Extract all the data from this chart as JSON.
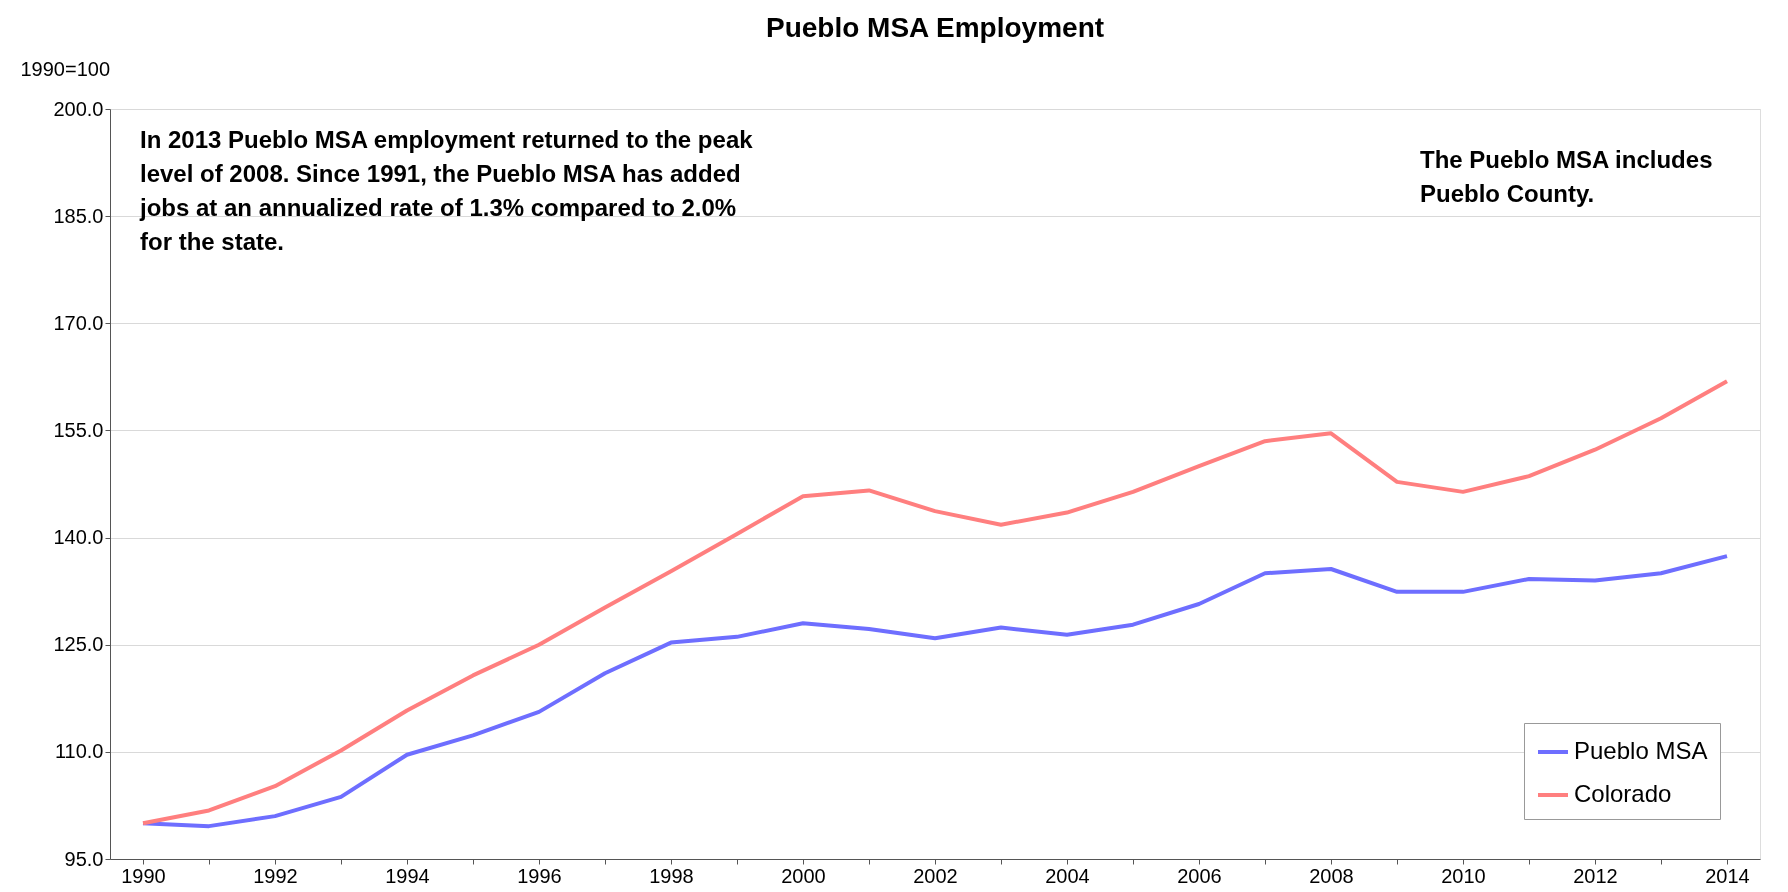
{
  "chart_data": {
    "type": "line",
    "title": "Pueblo MSA Employment",
    "ylabel": "1990=100",
    "categories": [
      "1990",
      null,
      "1992",
      null,
      "1994",
      null,
      "1996",
      null,
      "1998",
      null,
      "2000",
      null,
      "2002",
      null,
      "2004",
      null,
      "2006",
      null,
      "2008",
      null,
      "2010",
      null,
      "2012",
      null,
      "2014"
    ],
    "series": [
      {
        "name": "Pueblo MSA",
        "color": "#6e6eff",
        "values": [
          100.0,
          99.6,
          101.0,
          103.7,
          109.6,
          112.3,
          115.6,
          121.0,
          125.3,
          126.1,
          128.0,
          127.2,
          125.9,
          127.4,
          126.4,
          127.8,
          130.7,
          135.0,
          135.6,
          132.4,
          132.4,
          134.2,
          134.0,
          135.0,
          137.4
        ]
      },
      {
        "name": "Colorado",
        "color": "#ff7f7f",
        "values": [
          100.0,
          101.8,
          105.2,
          110.2,
          115.8,
          120.7,
          125.0,
          130.2,
          135.3,
          140.5,
          145.8,
          146.6,
          143.7,
          141.8,
          143.5,
          146.4,
          150.0,
          153.5,
          154.6,
          147.8,
          146.4,
          148.6,
          152.3,
          156.7,
          161.9
        ]
      }
    ],
    "ylim": [
      95,
      200
    ],
    "yticks": [
      {
        "value": 95,
        "label": "95.0"
      },
      {
        "value": 110,
        "label": "110.0"
      },
      {
        "value": 125,
        "label": "125.0"
      },
      {
        "value": 140,
        "label": "140.0"
      },
      {
        "value": 155,
        "label": "155.0"
      },
      {
        "value": 170,
        "label": "170.0"
      },
      {
        "value": 185,
        "label": "185.0"
      },
      {
        "value": 200,
        "label": "200.0"
      }
    ],
    "grid": "y",
    "legend": "bottom right",
    "marker": "none",
    "line_style": "solid",
    "annotations": [
      "In 2013 Pueblo MSA employment returned to the peak\nlevel of 2008. Since 1991, the Pueblo MSA has added\njobs at an annualized rate of 1.3% compared to 2.0%\nfor the state.",
      "The Pueblo MSA includes\nPueblo County."
    ]
  }
}
